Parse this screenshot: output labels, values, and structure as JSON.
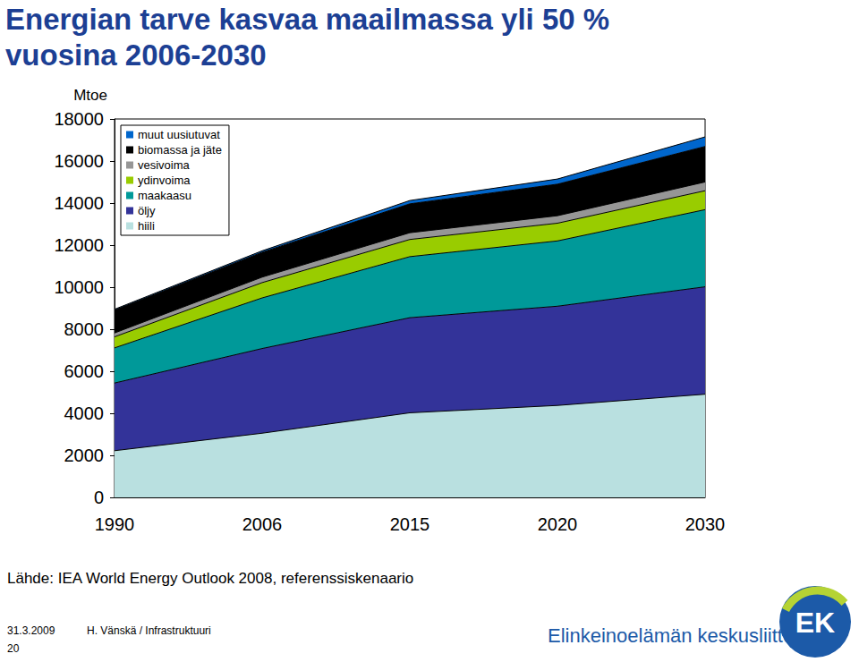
{
  "chart_data": {
    "type": "area",
    "title": "Energian tarve kasvaa maailmassa yli 50 % vuosina 2006-2030",
    "y_label": "Mtoe",
    "categories": [
      "1990",
      "2006",
      "2015",
      "2020",
      "2030"
    ],
    "series": [
      {
        "name": "hiili",
        "color": "#b9e0e0",
        "values": [
          2221,
          3053,
          4023,
          4374,
          4908
        ]
      },
      {
        "name": "öljy",
        "color": "#333399",
        "values": [
          3219,
          4029,
          4525,
          4720,
          5109
        ]
      },
      {
        "name": "maakaasu",
        "color": "#009999",
        "values": [
          1671,
          2407,
          2903,
          3106,
          3670
        ]
      },
      {
        "name": "ydinvoima",
        "color": "#99cc00",
        "values": [
          526,
          728,
          817,
          842,
          901
        ]
      },
      {
        "name": "vesivoima",
        "color": "#969696",
        "values": [
          184,
          261,
          321,
          356,
          414
        ]
      },
      {
        "name": "biomassa ja jäte",
        "color": "#000000",
        "values": [
          1090,
          1186,
          1375,
          1501,
          1691
        ]
      },
      {
        "name": "muut uusiutuvat",
        "color": "#0066cc",
        "values": [
          38,
          66,
          158,
          246,
          456
        ]
      }
    ],
    "ylim": [
      0,
      18000
    ],
    "yticks": [
      0,
      2000,
      4000,
      6000,
      8000,
      10000,
      12000,
      14000,
      16000,
      18000
    ],
    "stacked": true,
    "grid": false,
    "legend": "upper left"
  },
  "slide": {
    "source": "Lähde: IEA World Energy Outlook 2008, referenssiskenaario",
    "date": "31.3.2009",
    "author": "H. Vänskä / Infrastruktuuri",
    "page": "20",
    "organization": "Elinkeinoelämän keskusliitto",
    "logo": "EK"
  }
}
